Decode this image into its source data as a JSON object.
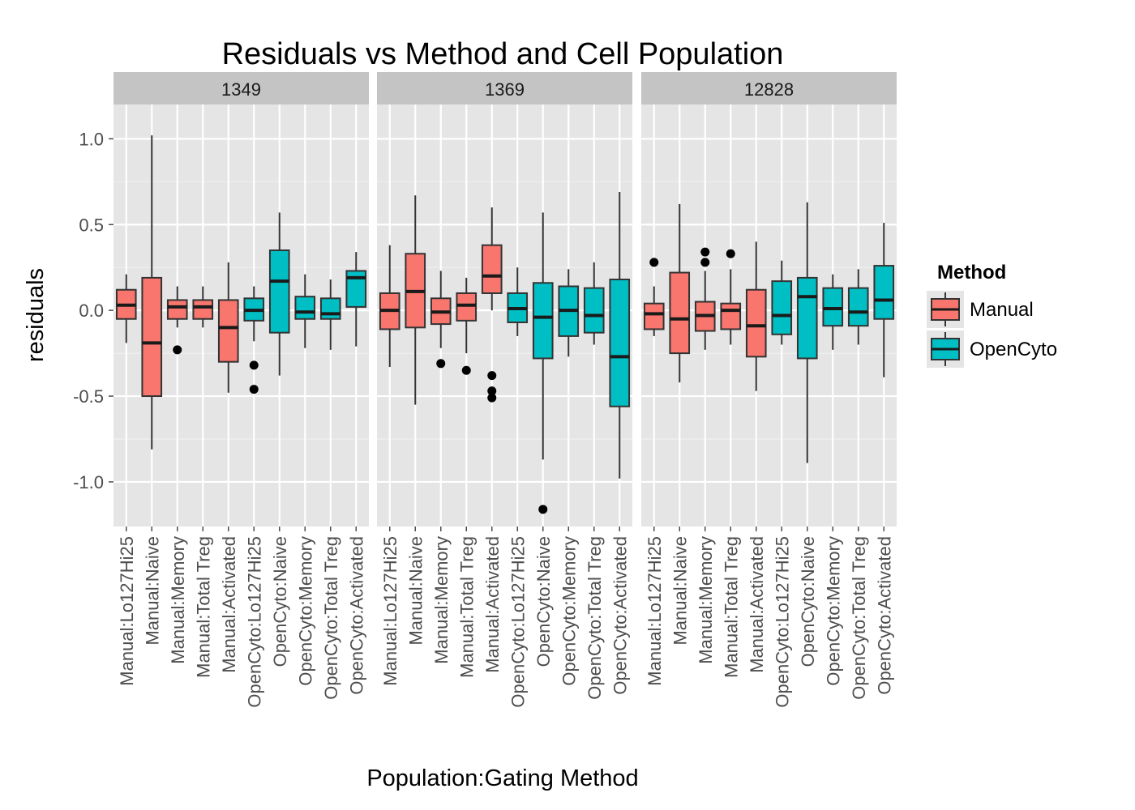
{
  "chart_data": {
    "type": "boxplot",
    "title": "Residuals vs Method and Cell Population",
    "xlabel": "Population:Gating Method",
    "ylabel": "residuals",
    "ylim": [
      -1.26,
      1.2
    ],
    "yticks": [
      1.0,
      0.5,
      0.0,
      -0.5,
      -1.0
    ],
    "ytick_labels": [
      "1.0",
      "0.5",
      "0.0",
      "-0.5",
      "-1.0"
    ],
    "grid": true,
    "legend": {
      "title": "Method",
      "position": "right",
      "entries": [
        {
          "label": "Manual",
          "color": "#F8766D"
        },
        {
          "label": "OpenCyto",
          "color": "#00BFC4"
        }
      ]
    },
    "categories": [
      "Manual:Lo127Hi25",
      "Manual:Naive",
      "Manual:Memory",
      "Manual:Total Treg",
      "Manual:Activated",
      "OpenCyto:Lo127Hi25",
      "OpenCyto:Naive",
      "OpenCyto:Memory",
      "OpenCyto:Total Treg",
      "OpenCyto:Activated"
    ],
    "method_of_category": [
      "Manual",
      "Manual",
      "Manual",
      "Manual",
      "Manual",
      "OpenCyto",
      "OpenCyto",
      "OpenCyto",
      "OpenCyto",
      "OpenCyto"
    ],
    "panels": [
      {
        "label": "1349",
        "boxes": [
          {
            "low": -0.19,
            "q1": -0.05,
            "median": 0.03,
            "q3": 0.12,
            "high": 0.21,
            "outliers": []
          },
          {
            "low": -0.81,
            "q1": -0.5,
            "median": -0.19,
            "q3": 0.19,
            "high": 1.02,
            "outliers": []
          },
          {
            "low": -0.1,
            "q1": -0.05,
            "median": 0.02,
            "q3": 0.06,
            "high": 0.14,
            "outliers": [
              -0.23
            ]
          },
          {
            "low": -0.1,
            "q1": -0.05,
            "median": 0.02,
            "q3": 0.06,
            "high": 0.14,
            "outliers": []
          },
          {
            "low": -0.48,
            "q1": -0.3,
            "median": -0.1,
            "q3": 0.06,
            "high": 0.28,
            "outliers": []
          },
          {
            "low": -0.18,
            "q1": -0.06,
            "median": 0.0,
            "q3": 0.07,
            "high": 0.14,
            "outliers": [
              -0.32,
              -0.46
            ]
          },
          {
            "low": -0.38,
            "q1": -0.13,
            "median": 0.17,
            "q3": 0.35,
            "high": 0.57,
            "outliers": []
          },
          {
            "low": -0.22,
            "q1": -0.05,
            "median": -0.01,
            "q3": 0.08,
            "high": 0.21,
            "outliers": []
          },
          {
            "low": -0.23,
            "q1": -0.05,
            "median": -0.02,
            "q3": 0.07,
            "high": 0.18,
            "outliers": []
          },
          {
            "low": -0.21,
            "q1": 0.02,
            "median": 0.19,
            "q3": 0.23,
            "high": 0.34,
            "outliers": []
          }
        ]
      },
      {
        "label": "1369",
        "boxes": [
          {
            "low": -0.33,
            "q1": -0.11,
            "median": 0.0,
            "q3": 0.1,
            "high": 0.38,
            "outliers": []
          },
          {
            "low": -0.55,
            "q1": -0.1,
            "median": 0.11,
            "q3": 0.33,
            "high": 0.67,
            "outliers": []
          },
          {
            "low": -0.22,
            "q1": -0.08,
            "median": -0.01,
            "q3": 0.07,
            "high": 0.23,
            "outliers": [
              -0.31
            ]
          },
          {
            "low": -0.25,
            "q1": -0.06,
            "median": 0.03,
            "q3": 0.1,
            "high": 0.19,
            "outliers": [
              -0.35
            ]
          },
          {
            "low": 0.0,
            "q1": 0.1,
            "median": 0.2,
            "q3": 0.38,
            "high": 0.6,
            "outliers": [
              -0.38,
              -0.47,
              -0.51
            ]
          },
          {
            "low": -0.15,
            "q1": -0.07,
            "median": 0.01,
            "q3": 0.1,
            "high": 0.25,
            "outliers": []
          },
          {
            "low": -0.87,
            "q1": -0.28,
            "median": -0.04,
            "q3": 0.16,
            "high": 0.57,
            "outliers": [
              -1.16
            ]
          },
          {
            "low": -0.27,
            "q1": -0.15,
            "median": 0.0,
            "q3": 0.14,
            "high": 0.24,
            "outliers": []
          },
          {
            "low": -0.2,
            "q1": -0.13,
            "median": -0.03,
            "q3": 0.13,
            "high": 0.28,
            "outliers": []
          },
          {
            "low": -0.98,
            "q1": -0.56,
            "median": -0.27,
            "q3": 0.18,
            "high": 0.69,
            "outliers": []
          }
        ]
      },
      {
        "label": "12828",
        "boxes": [
          {
            "low": -0.15,
            "q1": -0.11,
            "median": -0.02,
            "q3": 0.04,
            "high": 0.14,
            "outliers": [
              0.28
            ]
          },
          {
            "low": -0.42,
            "q1": -0.25,
            "median": -0.05,
            "q3": 0.22,
            "high": 0.62,
            "outliers": []
          },
          {
            "low": -0.23,
            "q1": -0.12,
            "median": -0.03,
            "q3": 0.05,
            "high": 0.23,
            "outliers": [
              0.28,
              0.34
            ]
          },
          {
            "low": -0.2,
            "q1": -0.11,
            "median": 0.0,
            "q3": 0.04,
            "high": 0.24,
            "outliers": [
              0.33
            ]
          },
          {
            "low": -0.47,
            "q1": -0.27,
            "median": -0.09,
            "q3": 0.12,
            "high": 0.4,
            "outliers": []
          },
          {
            "low": -0.2,
            "q1": -0.14,
            "median": -0.03,
            "q3": 0.17,
            "high": 0.29,
            "outliers": []
          },
          {
            "low": -0.89,
            "q1": -0.28,
            "median": 0.08,
            "q3": 0.19,
            "high": 0.63,
            "outliers": []
          },
          {
            "low": -0.23,
            "q1": -0.09,
            "median": 0.01,
            "q3": 0.13,
            "high": 0.21,
            "outliers": []
          },
          {
            "low": -0.2,
            "q1": -0.09,
            "median": -0.01,
            "q3": 0.13,
            "high": 0.24,
            "outliers": []
          },
          {
            "low": -0.39,
            "q1": -0.05,
            "median": 0.06,
            "q3": 0.26,
            "high": 0.51,
            "outliers": []
          }
        ]
      }
    ]
  }
}
